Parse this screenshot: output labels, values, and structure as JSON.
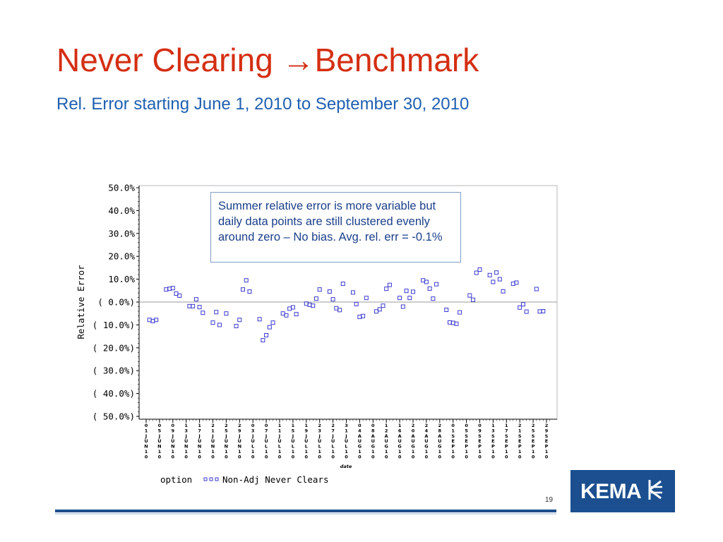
{
  "slide": {
    "title_part1": "Never Clearing ",
    "title_arrow": "→",
    "title_part2": "Benchmark",
    "subtitle": "Rel. Error starting June 1, 2010 to September 30, 2010",
    "annotation": "Summer relative error is more variable but daily data points are still clustered evenly around zero – No bias.  Avg. rel. err = -0.1%",
    "page_number": "19",
    "logo_text": "KEMA"
  },
  "colors": {
    "title": "#d42e12",
    "subtitle": "#1f5fb0",
    "marker": "#3a3ad0",
    "footer_bar": "#1f4e8c",
    "logo_bg": "#1b4f8f"
  },
  "chart_data": {
    "type": "scatter",
    "title": "",
    "xlabel": "date",
    "ylabel": "Relative Error",
    "ylim": [
      -50,
      50
    ],
    "y_tick_values": [
      50,
      40,
      30,
      20,
      10,
      0,
      -10,
      -20,
      -30,
      -40,
      -50
    ],
    "y_tick_labels": [
      "50.0%",
      "40.0%",
      "30.0%",
      "20.0%",
      "10.0%",
      "(  0.0%)",
      "( 10.0%)",
      "( 20.0%)",
      "( 30.0%)",
      "( 40.0%)",
      "( 50.0%)"
    ],
    "x_range": [
      "2010-06-01",
      "2010-09-30"
    ],
    "x_ticks": [
      "2010-06-01",
      "2010-06-05",
      "2010-06-09",
      "2010-06-13",
      "2010-06-17",
      "2010-06-21",
      "2010-06-25",
      "2010-06-29",
      "2010-07-03",
      "2010-07-07",
      "2010-07-11",
      "2010-07-15",
      "2010-07-19",
      "2010-07-23",
      "2010-07-27",
      "2010-07-31",
      "2010-08-04",
      "2010-08-08",
      "2010-08-12",
      "2010-08-16",
      "2010-08-20",
      "2010-08-24",
      "2010-08-28",
      "2010-09-01",
      "2010-09-05",
      "2010-09-09",
      "2010-09-13",
      "2010-09-17",
      "2010-09-21",
      "2010-09-25",
      "2010-09-29"
    ],
    "x_tick_labels": [
      "01JUN10",
      "05JUN10",
      "09JUN10",
      "13JUN10",
      "17JUN10",
      "21JUN10",
      "25JUN10",
      "29JUN10",
      "03JUL10",
      "07JUL10",
      "11JUL10",
      "15JUL10",
      "19JUL10",
      "23JUL10",
      "27JUL10",
      "31JUL10",
      "04AUG10",
      "08AUG10",
      "12AUG10",
      "16AUG10",
      "20AUG10",
      "24AUG10",
      "28AUG10",
      "01SEP10",
      "05SEP10",
      "09SEP10",
      "13SEP10",
      "17SEP10",
      "21SEP10",
      "25SEP10",
      "29SEP10"
    ],
    "reference_line": 0,
    "grid": false,
    "legend_title": "option",
    "series": [
      {
        "name": "Non-Adj Never Clears",
        "marker": "square",
        "points": [
          [
            "2010-06-02",
            -7.8
          ],
          [
            "2010-06-03",
            -8.3
          ],
          [
            "2010-06-04",
            -7.8
          ],
          [
            "2010-06-07",
            5.5
          ],
          [
            "2010-06-08",
            5.8
          ],
          [
            "2010-06-09",
            6.1
          ],
          [
            "2010-06-10",
            3.7
          ],
          [
            "2010-06-11",
            2.8
          ],
          [
            "2010-06-14",
            -1.8
          ],
          [
            "2010-06-15",
            -1.8
          ],
          [
            "2010-06-16",
            1.2
          ],
          [
            "2010-06-17",
            -2.2
          ],
          [
            "2010-06-18",
            -4.7
          ],
          [
            "2010-06-21",
            -9.0
          ],
          [
            "2010-06-22",
            -4.4
          ],
          [
            "2010-06-23",
            -10.0
          ],
          [
            "2010-06-25",
            -5.0
          ],
          [
            "2010-06-28",
            -10.5
          ],
          [
            "2010-06-29",
            -7.8
          ],
          [
            "2010-06-30",
            5.5
          ],
          [
            "2010-07-01",
            9.5
          ],
          [
            "2010-07-02",
            4.6
          ],
          [
            "2010-07-05",
            -7.5
          ],
          [
            "2010-07-06",
            -16.7
          ],
          [
            "2010-07-07",
            -14.5
          ],
          [
            "2010-07-08",
            -11.0
          ],
          [
            "2010-07-09",
            -9.0
          ],
          [
            "2010-07-12",
            -5.0
          ],
          [
            "2010-07-13",
            -5.8
          ],
          [
            "2010-07-14",
            -2.9
          ],
          [
            "2010-07-15",
            -2.3
          ],
          [
            "2010-07-16",
            -5.3
          ],
          [
            "2010-07-19",
            -0.7
          ],
          [
            "2010-07-20",
            -1.2
          ],
          [
            "2010-07-21",
            -1.6
          ],
          [
            "2010-07-22",
            1.5
          ],
          [
            "2010-07-23",
            5.5
          ],
          [
            "2010-07-26",
            4.6
          ],
          [
            "2010-07-27",
            1.2
          ],
          [
            "2010-07-28",
            -2.7
          ],
          [
            "2010-07-29",
            -3.5
          ],
          [
            "2010-07-30",
            8.0
          ],
          [
            "2010-08-02",
            4.2
          ],
          [
            "2010-08-03",
            -0.9
          ],
          [
            "2010-08-04",
            -6.5
          ],
          [
            "2010-08-05",
            -6.1
          ],
          [
            "2010-08-06",
            1.8
          ],
          [
            "2010-08-09",
            -4.1
          ],
          [
            "2010-08-10",
            -3.2
          ],
          [
            "2010-08-11",
            -1.6
          ],
          [
            "2010-08-12",
            5.8
          ],
          [
            "2010-08-13",
            7.5
          ],
          [
            "2010-08-16",
            1.8
          ],
          [
            "2010-08-17",
            -2.0
          ],
          [
            "2010-08-18",
            4.9
          ],
          [
            "2010-08-19",
            1.8
          ],
          [
            "2010-08-20",
            4.5
          ],
          [
            "2010-08-23",
            9.5
          ],
          [
            "2010-08-24",
            8.8
          ],
          [
            "2010-08-25",
            5.9
          ],
          [
            "2010-08-26",
            1.5
          ],
          [
            "2010-08-27",
            7.8
          ],
          [
            "2010-08-30",
            -3.4
          ],
          [
            "2010-08-31",
            -8.9
          ],
          [
            "2010-09-01",
            -9.1
          ],
          [
            "2010-09-02",
            -9.5
          ],
          [
            "2010-09-03",
            -4.5
          ],
          [
            "2010-09-06",
            2.9
          ],
          [
            "2010-09-07",
            1.0
          ],
          [
            "2010-09-08",
            12.8
          ],
          [
            "2010-09-09",
            14.2
          ],
          [
            "2010-09-12",
            11.8
          ],
          [
            "2010-09-13",
            8.8
          ],
          [
            "2010-09-14",
            12.9
          ],
          [
            "2010-09-15",
            10.0
          ],
          [
            "2010-09-16",
            4.7
          ],
          [
            "2010-09-19",
            8.0
          ],
          [
            "2010-09-20",
            8.5
          ],
          [
            "2010-09-21",
            -2.4
          ],
          [
            "2010-09-22",
            -1.0
          ],
          [
            "2010-09-23",
            -4.2
          ],
          [
            "2010-09-26",
            5.7
          ],
          [
            "2010-09-27",
            -4.1
          ],
          [
            "2010-09-28",
            -4.0
          ]
        ]
      }
    ]
  }
}
